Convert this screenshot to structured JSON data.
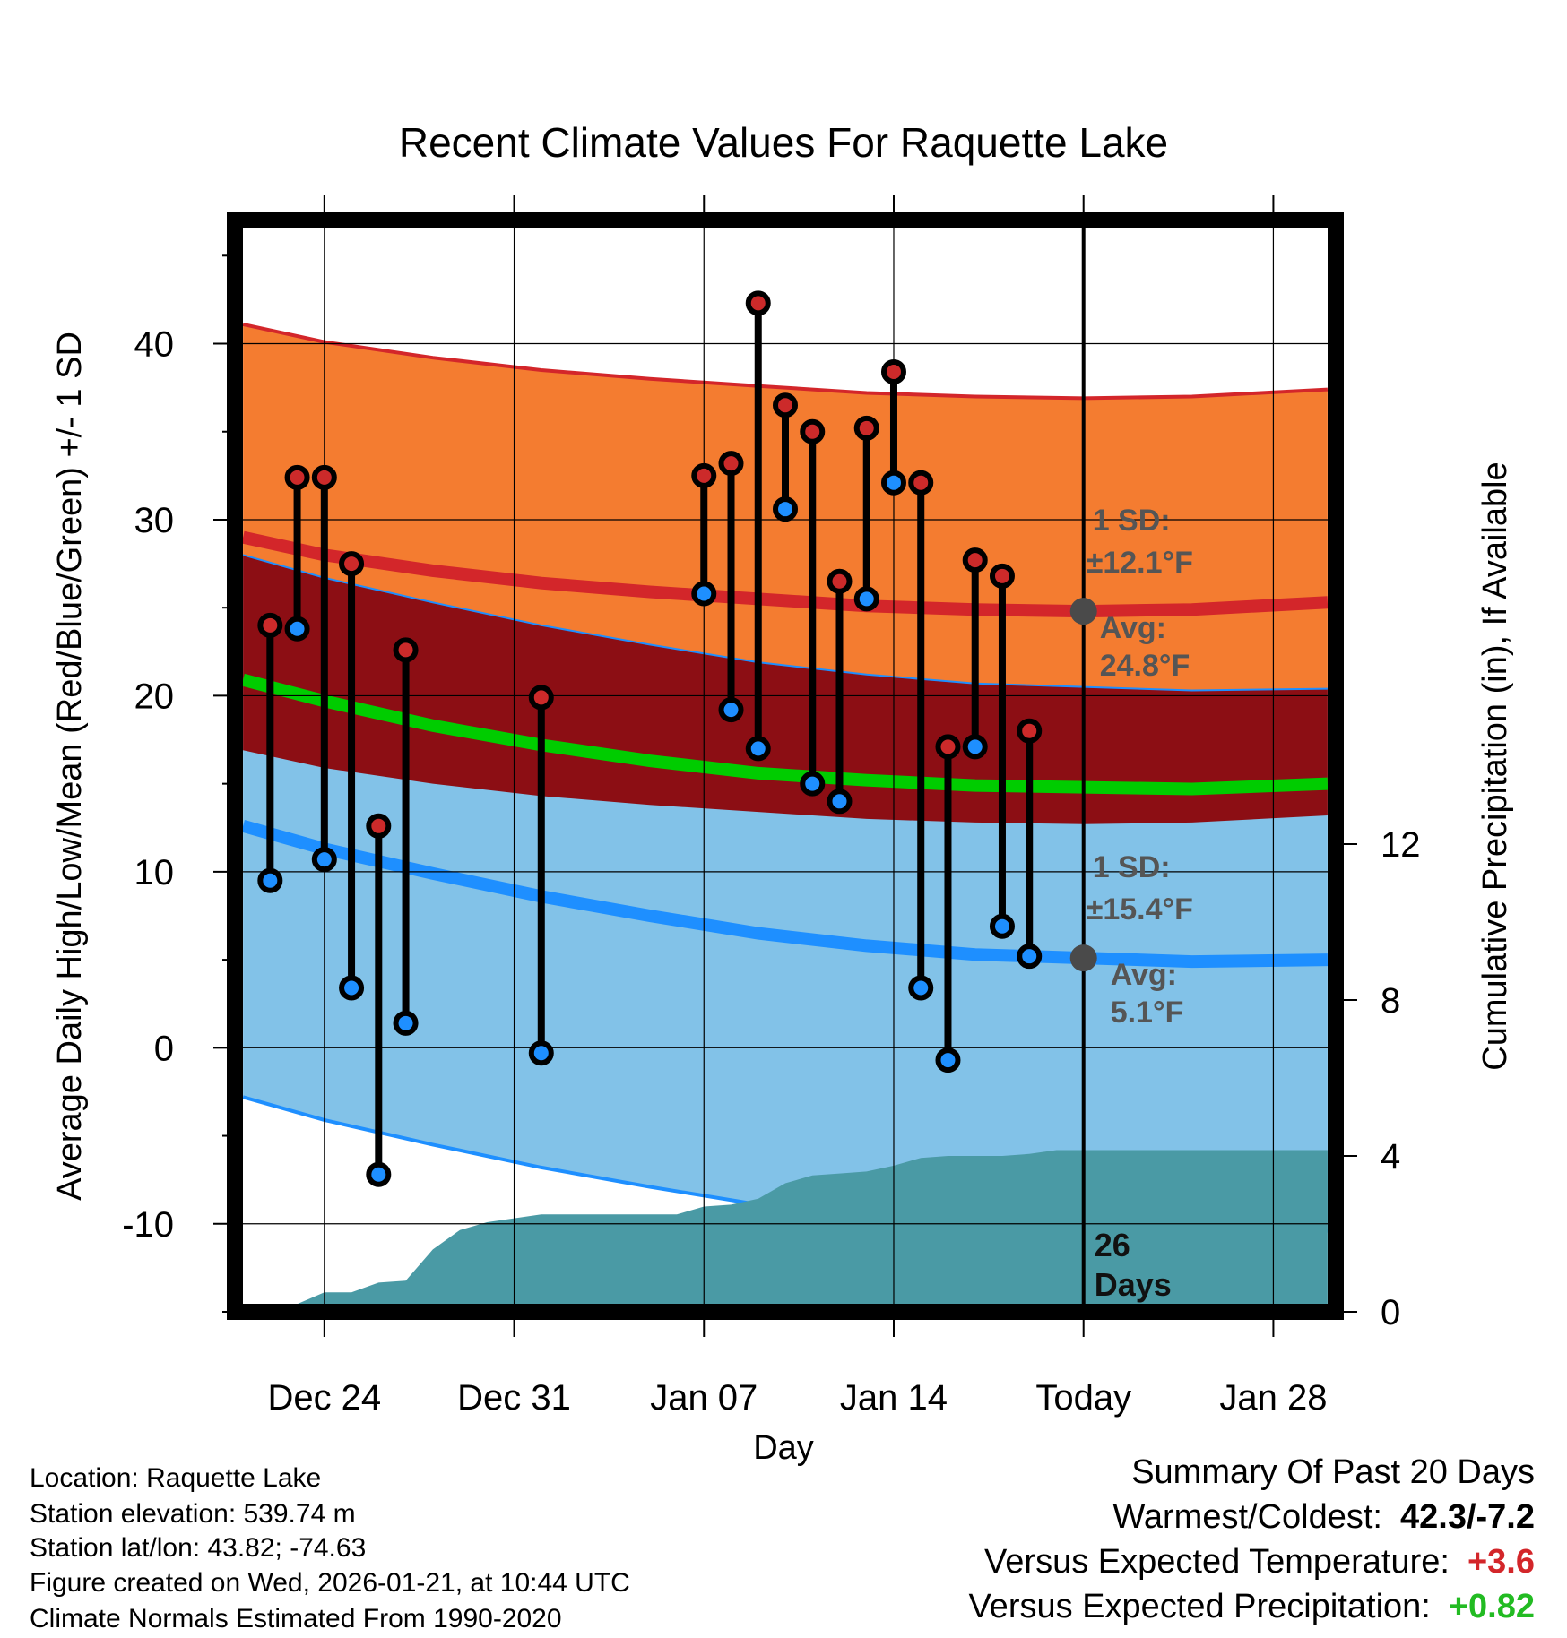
{
  "chart_data": {
    "type": "range-line",
    "title": "Recent Climate Values For Raquette Lake",
    "xlabel": "Day",
    "ylabel": "Average Daily High/Low/Mean (Red/Blue/Green) +/- 1 SD",
    "y2label": "Cumulative Precipitation (in), If Available",
    "xticks": [
      {
        "day": 4,
        "label": "Dec 24"
      },
      {
        "day": 11,
        "label": "Dec 31"
      },
      {
        "day": 18,
        "label": "Jan 07"
      },
      {
        "day": 25,
        "label": "Jan 14"
      },
      {
        "day": 32,
        "label": "Today"
      },
      {
        "day": 39,
        "label": "Jan 28"
      }
    ],
    "xlim": [
      0.7,
      41.3
    ],
    "ylim": [
      -15,
      47
    ],
    "yticks": [
      -10,
      0,
      10,
      20,
      30,
      40
    ],
    "y2lim": [
      0,
      28
    ],
    "y2ticks": [
      0,
      4,
      8,
      12
    ],
    "normals": {
      "days": [
        1,
        4,
        8,
        12,
        16,
        20,
        24,
        28,
        32,
        36,
        41
      ],
      "high_avg": [
        29.0,
        28.0,
        27.1,
        26.4,
        25.9,
        25.5,
        25.1,
        24.9,
        24.8,
        24.9,
        25.3
      ],
      "high_sd": 12.1,
      "low_avg": [
        12.6,
        11.3,
        9.9,
        8.6,
        7.5,
        6.5,
        5.8,
        5.3,
        5.1,
        4.9,
        5.0
      ],
      "low_sd": 15.4,
      "mean_avg": [
        20.9,
        19.7,
        18.3,
        17.2,
        16.3,
        15.6,
        15.2,
        14.9,
        14.8,
        14.7,
        15.0
      ]
    },
    "observations": [
      {
        "day": 2,
        "high": 24.0,
        "low": 9.5
      },
      {
        "day": 3,
        "high": 32.4,
        "low": 23.8
      },
      {
        "day": 4,
        "high": 32.4,
        "low": 10.7
      },
      {
        "day": 5,
        "high": 27.5,
        "low": 3.4
      },
      {
        "day": 6,
        "high": 12.6,
        "low": -7.2
      },
      {
        "day": 7,
        "high": 22.6,
        "low": 1.4
      },
      {
        "day": 12,
        "high": 19.9,
        "low": -0.3
      },
      {
        "day": 18,
        "high": 32.5,
        "low": 25.8
      },
      {
        "day": 19,
        "high": 33.2,
        "low": 19.2
      },
      {
        "day": 20,
        "high": 42.3,
        "low": 17.0
      },
      {
        "day": 21,
        "high": 36.5,
        "low": 30.6
      },
      {
        "day": 22,
        "high": 35.0,
        "low": 15.0
      },
      {
        "day": 23,
        "high": 26.5,
        "low": 14.0
      },
      {
        "day": 24,
        "high": 35.2,
        "low": 25.5
      },
      {
        "day": 25,
        "high": 38.4,
        "low": 32.1
      },
      {
        "day": 26,
        "high": 32.1,
        "low": 3.4
      },
      {
        "day": 27,
        "high": 17.1,
        "low": -0.7
      },
      {
        "day": 28,
        "high": 27.7,
        "low": 17.1
      },
      {
        "day": 29,
        "high": 26.8,
        "low": 6.9
      },
      {
        "day": 30,
        "high": 18.0,
        "low": 5.2
      }
    ],
    "precip_cumulative": [
      {
        "day": 2,
        "in": 0.0
      },
      {
        "day": 3,
        "in": 0.2
      },
      {
        "day": 4,
        "in": 0.5
      },
      {
        "day": 5,
        "in": 0.5
      },
      {
        "day": 6,
        "in": 0.75
      },
      {
        "day": 7,
        "in": 0.8
      },
      {
        "day": 8,
        "in": 1.6
      },
      {
        "day": 9,
        "in": 2.1
      },
      {
        "day": 10,
        "in": 2.3
      },
      {
        "day": 11,
        "in": 2.4
      },
      {
        "day": 12,
        "in": 2.5
      },
      {
        "day": 13,
        "in": 2.5
      },
      {
        "day": 14,
        "in": 2.5
      },
      {
        "day": 15,
        "in": 2.5
      },
      {
        "day": 16,
        "in": 2.5
      },
      {
        "day": 17,
        "in": 2.5
      },
      {
        "day": 18,
        "in": 2.7
      },
      {
        "day": 19,
        "in": 2.75
      },
      {
        "day": 20,
        "in": 2.9
      },
      {
        "day": 21,
        "in": 3.3
      },
      {
        "day": 22,
        "in": 3.5
      },
      {
        "day": 23,
        "in": 3.55
      },
      {
        "day": 24,
        "in": 3.6
      },
      {
        "day": 25,
        "in": 3.75
      },
      {
        "day": 26,
        "in": 3.95
      },
      {
        "day": 27,
        "in": 4.0
      },
      {
        "day": 28,
        "in": 4.0
      },
      {
        "day": 29,
        "in": 4.0
      },
      {
        "day": 30,
        "in": 4.05
      },
      {
        "day": 31,
        "in": 4.15
      },
      {
        "day": 41,
        "in": 4.15
      }
    ],
    "annotations": {
      "high_sd_line1": "1 SD:",
      "high_sd_line2": "±12.1°F",
      "high_avg_line1": "Avg:",
      "high_avg_line2": "24.8°F",
      "low_sd_line1": "1 SD:",
      "low_sd_line2": "±15.4°F",
      "low_avg_line1": "Avg:",
      "low_avg_line2": "5.1°F",
      "days_count": "26",
      "days_word": "Days"
    },
    "colors": {
      "high_band": "#f47c30",
      "high_line": "#d3262a",
      "overlap_band": "#8c0e14",
      "low_band": "#82c2e8",
      "low_line": "#1e8fff",
      "mean_line": "#00cc00",
      "precip": "#4a9aa5",
      "high_dot": "#cc2a2a",
      "low_dot": "#1e8fff",
      "marker_gray": "#4a4a4a"
    }
  },
  "footer": {
    "location": "Location: Raquette Lake",
    "elevation": "Station elevation: 539.74 m",
    "latlon": "Station lat/lon: 43.82; -74.63",
    "created": "Figure created on Wed, 2026-01-21, at 10:44 UTC",
    "normals": "Climate Normals Estimated From 1990-2020"
  },
  "summary": {
    "title": "Summary Of Past 20 Days",
    "warm_cold_label": "Warmest/Coldest:",
    "warm_cold_value": "42.3/-7.2",
    "temp_label": "Versus Expected Temperature:",
    "temp_value": "+3.6",
    "temp_color": "#d3262a",
    "precip_label": "Versus Expected Precipitation:",
    "precip_value": "+0.82",
    "precip_color": "#22bb22"
  }
}
